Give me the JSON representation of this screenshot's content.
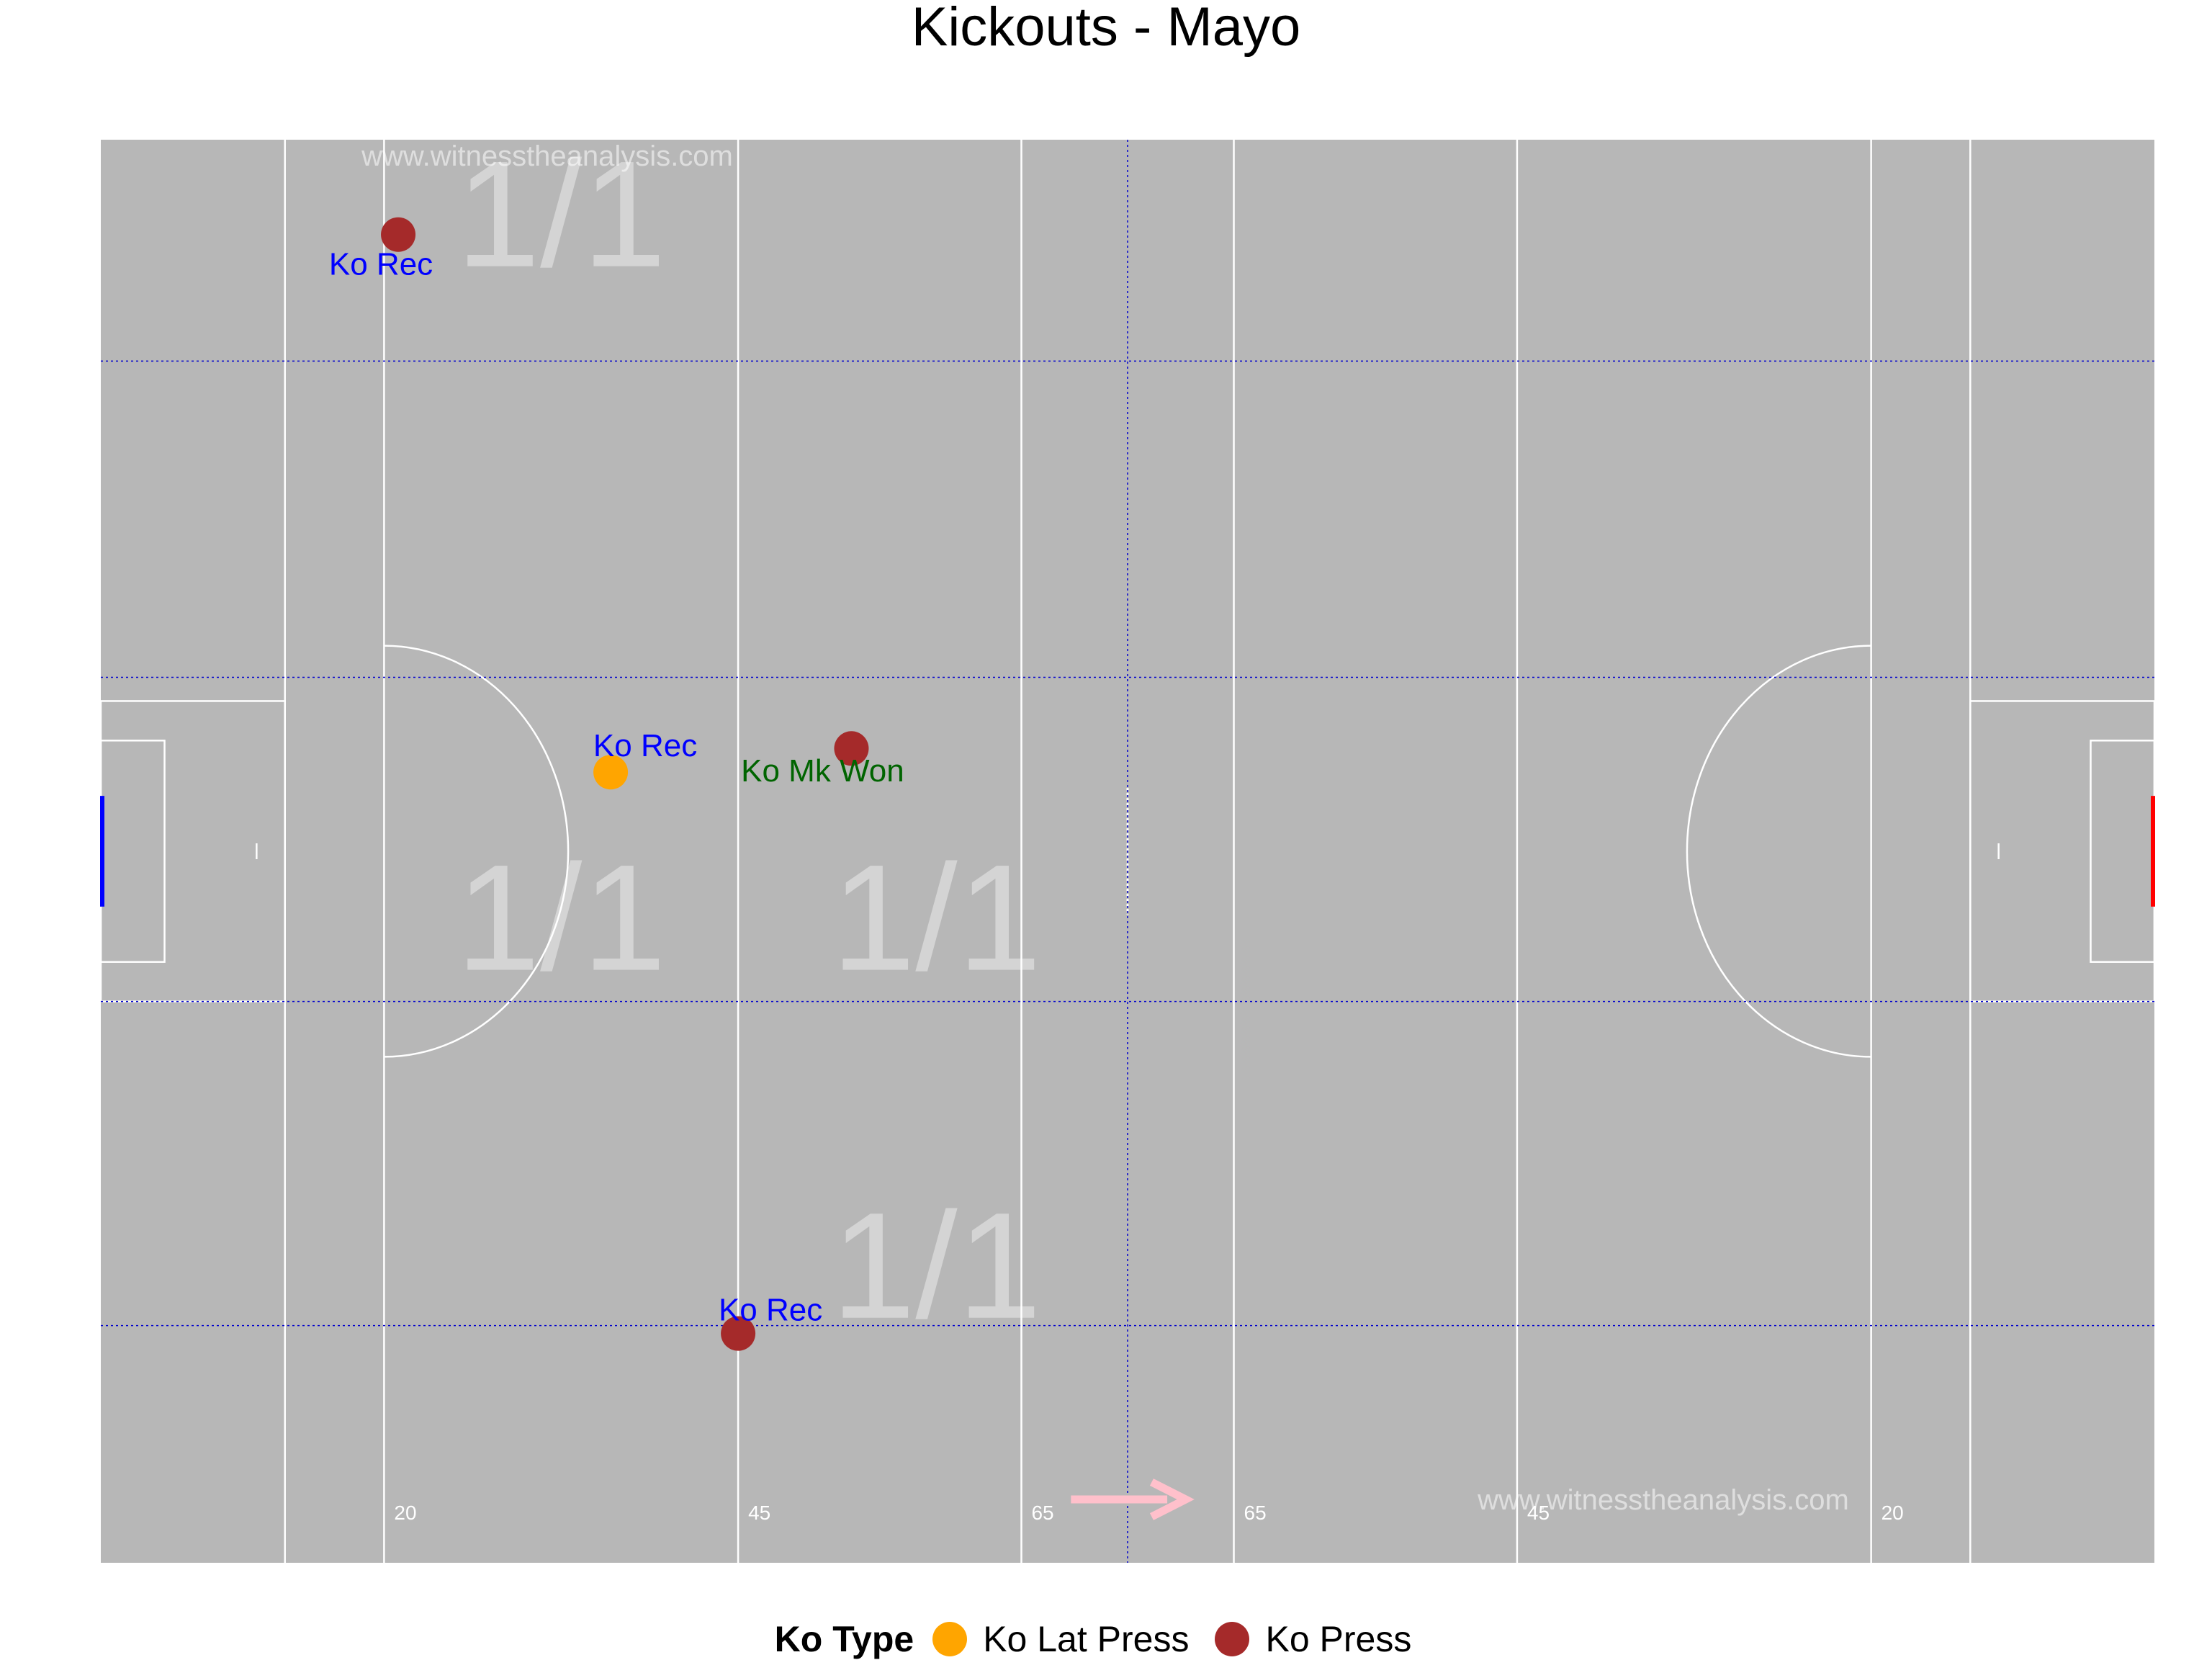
{
  "title": "Kickouts - Mayo",
  "watermark": "www.witnesstheanalysis.com",
  "distance_markers": [
    "20",
    "45",
    "65",
    "65",
    "45",
    "20"
  ],
  "zone_counts": [
    {
      "label": "1/1",
      "zone": "top-left"
    },
    {
      "label": "1/1",
      "zone": "centre-left"
    },
    {
      "label": "1/1",
      "zone": "centre-midleft"
    },
    {
      "label": "1/1",
      "zone": "bottom-midleft"
    }
  ],
  "legend": {
    "title": "Ko Type",
    "items": [
      {
        "label": "Ko Lat Press",
        "color": "#FFA500"
      },
      {
        "label": "Ko Press",
        "color": "#A52A2A"
      }
    ]
  },
  "colors": {
    "pitch": "#b7b7b7",
    "lines": "#ffffff",
    "grid": "#0000cd",
    "arrow": "#ffc0cb",
    "label_rec": "#0000ff",
    "label_won": "#006400",
    "left_goal": "#0000ff",
    "right_goal": "#ff0000"
  },
  "chart_data": {
    "type": "scatter",
    "title": "Kickouts - Mayo",
    "xlim": [
      0,
      145
    ],
    "ylim": [
      0,
      90
    ],
    "x_markers": [
      20,
      45,
      65,
      80,
      100,
      125
    ],
    "points": [
      {
        "x": 21,
        "y": 84,
        "type": "Ko Press",
        "outcome": "Ko Rec",
        "outcome_color": "#0000ff"
      },
      {
        "x": 36,
        "y": 50,
        "type": "Ko Lat Press",
        "outcome": "Ko Rec",
        "outcome_color": "#0000ff"
      },
      {
        "x": 53,
        "y": 51.5,
        "type": "Ko Press",
        "outcome": "Ko Mk Won",
        "outcome_color": "#006400"
      },
      {
        "x": 45,
        "y": 14.5,
        "type": "Ko Press",
        "outcome": "Ko Rec",
        "outcome_color": "#0000ff"
      }
    ]
  }
}
